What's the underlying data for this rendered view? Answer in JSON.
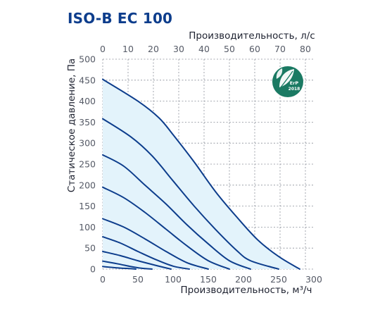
{
  "title": "ISO-B EC 100",
  "chart_data": {
    "type": "line",
    "title": "ISO-B EC 100",
    "xlabel": "Производительность, м³/ч",
    "x2label": "Производительность, л/с",
    "ylabel": "Статическое давление, Па",
    "xlim": [
      0,
      300
    ],
    "x2lim": [
      0,
      83.33
    ],
    "ylim": [
      0,
      500
    ],
    "x_ticks": [
      "0",
      "50",
      "100",
      "150",
      "200",
      "250",
      "300"
    ],
    "x2_ticks": [
      "0",
      "10",
      "20",
      "30",
      "40",
      "50",
      "60",
      "70",
      "80"
    ],
    "y_ticks": [
      "0",
      "50",
      "100",
      "150",
      "200",
      "250",
      "300",
      "350",
      "400",
      "450",
      "500"
    ],
    "grid": true,
    "shaded_region": true,
    "series": [
      {
        "x": [
          0,
          50,
          80,
          100,
          130,
          160,
          190,
          220,
          250,
          280
        ],
        "y": [
          452,
          400,
          360,
          320,
          255,
          185,
          125,
          70,
          30,
          0
        ]
      },
      {
        "x": [
          0,
          40,
          70,
          100,
          130,
          160,
          190,
          210,
          250
        ],
        "y": [
          358,
          315,
          270,
          210,
          150,
          95,
          45,
          20,
          0
        ]
      },
      {
        "x": [
          0,
          30,
          60,
          90,
          120,
          150,
          180,
          210
        ],
        "y": [
          272,
          245,
          200,
          155,
          105,
          60,
          20,
          0
        ]
      },
      {
        "x": [
          0,
          30,
          60,
          90,
          120,
          150,
          180
        ],
        "y": [
          195,
          170,
          135,
          95,
          55,
          20,
          0
        ]
      },
      {
        "x": [
          0,
          30,
          60,
          90,
          120,
          150
        ],
        "y": [
          120,
          100,
          72,
          42,
          15,
          0
        ]
      },
      {
        "x": [
          0,
          25,
          50,
          75,
          100,
          123
        ],
        "y": [
          77,
          62,
          42,
          23,
          7,
          0
        ]
      },
      {
        "x": [
          0,
          25,
          50,
          75,
          97
        ],
        "y": [
          42,
          32,
          20,
          9,
          0
        ]
      },
      {
        "x": [
          0,
          20,
          40,
          55,
          70
        ],
        "y": [
          19,
          13,
          6,
          2,
          0
        ]
      },
      {
        "x": [
          0,
          20,
          40,
          47
        ],
        "y": [
          6,
          3,
          1,
          0
        ]
      }
    ]
  },
  "badge": {
    "line1": "ErP",
    "line2": "2018",
    "color": "#1b7a63"
  }
}
